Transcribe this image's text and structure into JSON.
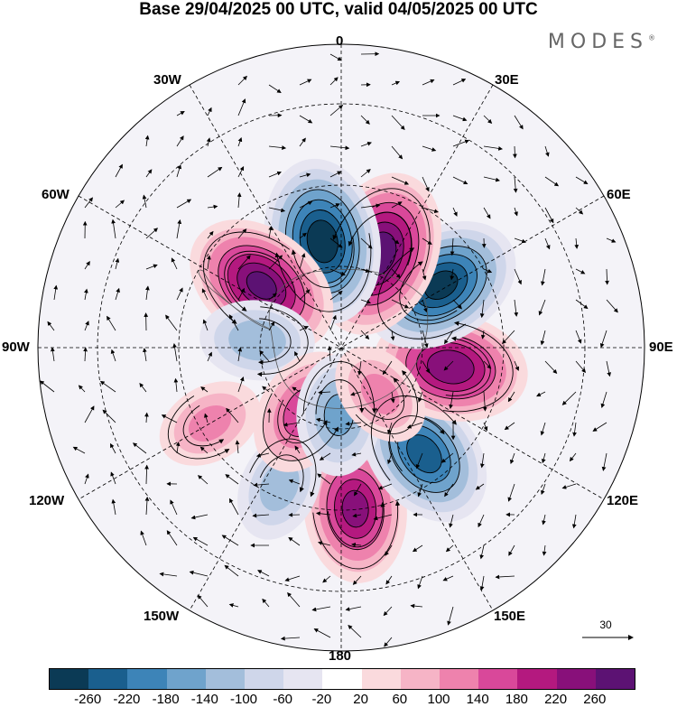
{
  "title": "Base 29/04/2025 00 UTC, valid 04/05/2025 00 UTC",
  "brand": "MODES",
  "brand_mark": "®",
  "longitude_labels": {
    "lon_0": "0",
    "lon_30e": "30E",
    "lon_60e": "60E",
    "lon_90e": "90E",
    "lon_120e": "120E",
    "lon_150e": "150E",
    "lon_180": "180",
    "lon_150w": "150W",
    "lon_120w": "120W",
    "lon_90w": "90W",
    "lon_60w": "60W",
    "lon_30w": "30W"
  },
  "reference_vector": {
    "value": "30"
  },
  "colorbar": {
    "levels": [
      "-260",
      "-220",
      "-180",
      "-140",
      "-100",
      "-60",
      "-20",
      "20",
      "60",
      "100",
      "140",
      "180",
      "220",
      "260"
    ],
    "colors": [
      "#0b3a55",
      "#1a5f8e",
      "#3d84b8",
      "#6fa3cc",
      "#a3bedb",
      "#cfd6ea",
      "#e6e5f1",
      "#ffffff",
      "#fadadd",
      "#f6b4c6",
      "#ee82ad",
      "#d9489a",
      "#b4197f",
      "#88107a",
      "#5c1273"
    ]
  },
  "anomaly_centers": [
    {
      "sign": "positive",
      "magnitude": 230,
      "lon_deg": 5,
      "colat_deg": 48
    },
    {
      "sign": "negative",
      "magnitude": 240,
      "lon_deg": 38,
      "colat_deg": 40
    },
    {
      "sign": "positive",
      "magnitude": 250,
      "lon_deg": 80,
      "colat_deg": 33
    },
    {
      "sign": "negative",
      "magnitude": 270,
      "lon_deg": 122,
      "colat_deg": 35
    },
    {
      "sign": "positive",
      "magnitude": 290,
      "lon_deg": 158,
      "colat_deg": 30
    },
    {
      "sign": "negative",
      "magnitude": 285,
      "lon_deg": 190,
      "colat_deg": 32
    },
    {
      "sign": "positive",
      "magnitude": 265,
      "lon_deg": 232,
      "colat_deg": 30
    },
    {
      "sign": "negative",
      "magnitude": 130,
      "lon_deg": 265,
      "colat_deg": 25
    },
    {
      "sign": "positive",
      "magnitude": 110,
      "lon_deg": 300,
      "colat_deg": 45
    },
    {
      "sign": "negative",
      "magnitude": 120,
      "lon_deg": 336,
      "colat_deg": 45
    },
    {
      "sign": "positive",
      "magnitude": 170,
      "lon_deg": 330,
      "colat_deg": 22
    },
    {
      "sign": "negative",
      "magnitude": 150,
      "lon_deg": 358,
      "colat_deg": 20
    },
    {
      "sign": "positive",
      "magnitude": 110,
      "lon_deg": 40,
      "colat_deg": 18
    }
  ]
}
